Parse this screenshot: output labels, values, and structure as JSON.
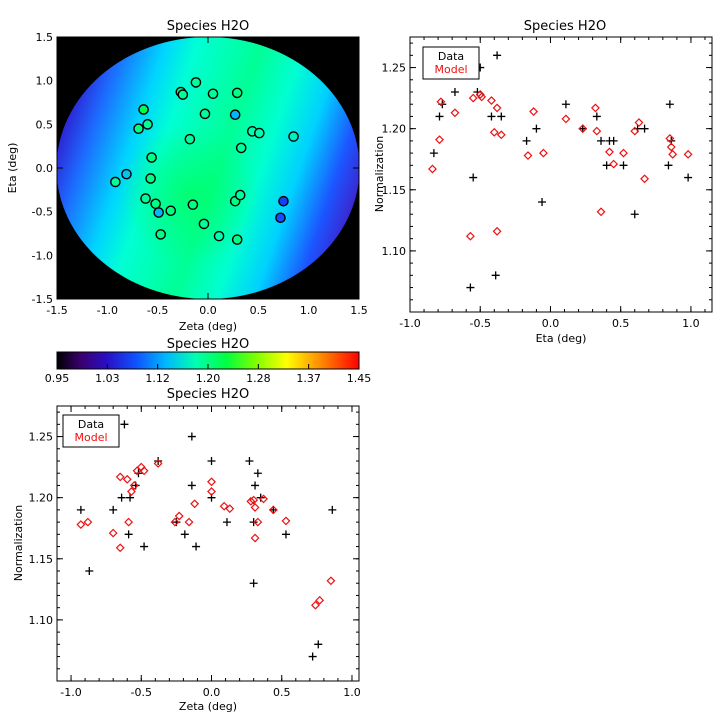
{
  "chart_data": [
    {
      "id": "map",
      "type": "heatmap",
      "title": "Species H2O",
      "xlabel": "Zeta (deg)",
      "ylabel": "Eta (deg)",
      "xlim": [
        -1.5,
        1.5
      ],
      "ylim": [
        -1.5,
        1.5
      ],
      "xticks": [
        "-1.5",
        "-1.0",
        "-0.5",
        "0.0",
        "0.5",
        "1.0",
        "1.5"
      ],
      "yticks": [
        "-1.5",
        "-1.0",
        "-0.5",
        "0.0",
        "0.5",
        "1.0",
        "1.5"
      ],
      "field_radius_deg": 1.5,
      "points": [
        {
          "zeta": -0.12,
          "eta": 0.98,
          "value": 1.19
        },
        {
          "zeta": -0.27,
          "eta": 0.87,
          "value": 1.2
        },
        {
          "zeta": -0.25,
          "eta": 0.84,
          "value": 1.19
        },
        {
          "zeta": 0.05,
          "eta": 0.85,
          "value": 1.19
        },
        {
          "zeta": 0.29,
          "eta": 0.86,
          "value": 1.2
        },
        {
          "zeta": -0.64,
          "eta": 0.67,
          "value": 1.22
        },
        {
          "zeta": -0.69,
          "eta": 0.45,
          "value": 1.2
        },
        {
          "zeta": -0.6,
          "eta": 0.5,
          "value": 1.19
        },
        {
          "zeta": -0.03,
          "eta": 0.62,
          "value": 1.19
        },
        {
          "zeta": 0.27,
          "eta": 0.61,
          "value": 1.13
        },
        {
          "zeta": -0.18,
          "eta": 0.33,
          "value": 1.19
        },
        {
          "zeta": 0.44,
          "eta": 0.42,
          "value": 1.18
        },
        {
          "zeta": 0.51,
          "eta": 0.4,
          "value": 1.18
        },
        {
          "zeta": 0.85,
          "eta": 0.36,
          "value": 1.17
        },
        {
          "zeta": 0.33,
          "eta": 0.23,
          "value": 1.19
        },
        {
          "zeta": -0.56,
          "eta": 0.12,
          "value": 1.2
        },
        {
          "zeta": -0.81,
          "eta": -0.07,
          "value": 1.14
        },
        {
          "zeta": -0.92,
          "eta": -0.16,
          "value": 1.19
        },
        {
          "zeta": -0.57,
          "eta": -0.12,
          "value": 1.2
        },
        {
          "zeta": -0.62,
          "eta": -0.35,
          "value": 1.19
        },
        {
          "zeta": -0.52,
          "eta": -0.41,
          "value": 1.2
        },
        {
          "zeta": -0.49,
          "eta": -0.51,
          "value": 1.13
        },
        {
          "zeta": -0.37,
          "eta": -0.49,
          "value": 1.2
        },
        {
          "zeta": -0.15,
          "eta": -0.42,
          "value": 1.2
        },
        {
          "zeta": 0.27,
          "eta": -0.38,
          "value": 1.2
        },
        {
          "zeta": 0.32,
          "eta": -0.31,
          "value": 1.19
        },
        {
          "zeta": 0.75,
          "eta": -0.38,
          "value": 1.07
        },
        {
          "zeta": 0.72,
          "eta": -0.57,
          "value": 1.08
        },
        {
          "zeta": -0.47,
          "eta": -0.76,
          "value": 1.2
        },
        {
          "zeta": -0.04,
          "eta": -0.64,
          "value": 1.19
        },
        {
          "zeta": 0.11,
          "eta": -0.78,
          "value": 1.18
        },
        {
          "zeta": 0.29,
          "eta": -0.82,
          "value": 1.2
        }
      ]
    },
    {
      "id": "colorbar",
      "type": "heatmap",
      "title": "Species H2O",
      "range": [
        0.95,
        1.45
      ],
      "tick_labels": [
        "0.95",
        "1.03",
        "1.12",
        "1.20",
        "1.28",
        "1.37",
        "1.45"
      ]
    },
    {
      "id": "eta_plot",
      "type": "scatter",
      "title": "Species H2O",
      "xlabel": "Eta (deg)",
      "ylabel": "Normalization",
      "xlim": [
        -1.0,
        1.15
      ],
      "ylim": [
        1.05,
        1.275
      ],
      "xticks": [
        -1.0,
        -0.5,
        0.0,
        0.5,
        1.0
      ],
      "xtick_labels": [
        "-1.0",
        "-0.5",
        "0.0",
        "0.5",
        "1.0"
      ],
      "yticks": [
        1.1,
        1.15,
        1.2,
        1.25
      ],
      "ytick_labels": [
        "1.10",
        "1.15",
        "1.20",
        "1.25"
      ],
      "legend": [
        "Data",
        "Model"
      ],
      "series": [
        {
          "name": "Data",
          "color": "#000000",
          "marker": "plus",
          "points": [
            [
              -0.83,
              1.18
            ],
            [
              -0.79,
              1.21
            ],
            [
              -0.77,
              1.22
            ],
            [
              -0.68,
              1.23
            ],
            [
              -0.57,
              1.07
            ],
            [
              -0.55,
              1.16
            ],
            [
              -0.52,
              1.23
            ],
            [
              -0.5,
              1.25
            ],
            [
              -0.42,
              1.21
            ],
            [
              -0.39,
              1.08
            ],
            [
              -0.38,
              1.26
            ],
            [
              -0.35,
              1.21
            ],
            [
              -0.17,
              1.19
            ],
            [
              -0.1,
              1.2
            ],
            [
              -0.06,
              1.14
            ],
            [
              0.11,
              1.22
            ],
            [
              0.23,
              1.2
            ],
            [
              0.33,
              1.21
            ],
            [
              0.36,
              1.19
            ],
            [
              0.4,
              1.17
            ],
            [
              0.42,
              1.19
            ],
            [
              0.45,
              1.19
            ],
            [
              0.52,
              1.17
            ],
            [
              0.6,
              1.13
            ],
            [
              0.62,
              1.2
            ],
            [
              0.67,
              1.2
            ],
            [
              0.84,
              1.17
            ],
            [
              0.85,
              1.22
            ],
            [
              0.86,
              1.19
            ],
            [
              0.98,
              1.16
            ]
          ]
        },
        {
          "name": "Model",
          "color": "#ee1111",
          "marker": "diamond",
          "points": [
            [
              -0.84,
              1.167
            ],
            [
              -0.79,
              1.191
            ],
            [
              -0.78,
              1.222
            ],
            [
              -0.68,
              1.213
            ],
            [
              -0.57,
              1.112
            ],
            [
              -0.55,
              1.225
            ],
            [
              -0.5,
              1.228
            ],
            [
              -0.49,
              1.226
            ],
            [
              -0.42,
              1.223
            ],
            [
              -0.4,
              1.197
            ],
            [
              -0.38,
              1.116
            ],
            [
              -0.38,
              1.217
            ],
            [
              -0.35,
              1.195
            ],
            [
              -0.16,
              1.178
            ],
            [
              -0.12,
              1.214
            ],
            [
              -0.05,
              1.18
            ],
            [
              0.11,
              1.208
            ],
            [
              0.23,
              1.2
            ],
            [
              0.32,
              1.217
            ],
            [
              0.36,
              1.132
            ],
            [
              0.33,
              1.198
            ],
            [
              0.42,
              1.181
            ],
            [
              0.45,
              1.171
            ],
            [
              0.52,
              1.18
            ],
            [
              0.6,
              1.198
            ],
            [
              0.63,
              1.205
            ],
            [
              0.67,
              1.159
            ],
            [
              0.85,
              1.192
            ],
            [
              0.86,
              1.185
            ],
            [
              0.87,
              1.179
            ],
            [
              0.98,
              1.179
            ]
          ]
        }
      ]
    },
    {
      "id": "zeta_plot",
      "type": "scatter",
      "title": "Species H2O",
      "xlabel": "Zeta (deg)",
      "ylabel": "Normalization",
      "xlim": [
        -1.1,
        1.05
      ],
      "ylim": [
        1.05,
        1.275
      ],
      "xticks": [
        -1.0,
        -0.5,
        0.0,
        0.5,
        1.0
      ],
      "xtick_labels": [
        "-1.0",
        "-0.5",
        "0.0",
        "0.5",
        "1.0"
      ],
      "yticks": [
        1.1,
        1.15,
        1.2,
        1.25
      ],
      "ytick_labels": [
        "1.10",
        "1.15",
        "1.20",
        "1.25"
      ],
      "legend": [
        "Data",
        "Model"
      ],
      "series": [
        {
          "name": "Data",
          "color": "#000000",
          "marker": "plus",
          "points": [
            [
              -0.93,
              1.19
            ],
            [
              -0.87,
              1.14
            ],
            [
              -0.7,
              1.19
            ],
            [
              -0.64,
              1.2
            ],
            [
              -0.62,
              1.26
            ],
            [
              -0.59,
              1.17
            ],
            [
              -0.58,
              1.2
            ],
            [
              -0.54,
              1.21
            ],
            [
              -0.52,
              1.22
            ],
            [
              -0.48,
              1.16
            ],
            [
              -0.38,
              1.23
            ],
            [
              -0.25,
              1.18
            ],
            [
              -0.19,
              1.17
            ],
            [
              -0.14,
              1.21
            ],
            [
              -0.14,
              1.25
            ],
            [
              -0.11,
              1.16
            ],
            [
              0.0,
              1.23
            ],
            [
              0.0,
              1.2
            ],
            [
              0.11,
              1.18
            ],
            [
              0.27,
              1.23
            ],
            [
              0.3,
              1.13
            ],
            [
              0.3,
              1.18
            ],
            [
              0.31,
              1.21
            ],
            [
              0.33,
              1.22
            ],
            [
              0.35,
              1.2
            ],
            [
              0.44,
              1.19
            ],
            [
              0.53,
              1.17
            ],
            [
              0.72,
              1.07
            ],
            [
              0.76,
              1.08
            ],
            [
              0.86,
              1.19
            ]
          ]
        },
        {
          "name": "Model",
          "color": "#ee1111",
          "marker": "diamond",
          "points": [
            [
              -0.93,
              1.178
            ],
            [
              -0.88,
              1.18
            ],
            [
              -0.7,
              1.171
            ],
            [
              -0.65,
              1.159
            ],
            [
              -0.65,
              1.217
            ],
            [
              -0.6,
              1.215
            ],
            [
              -0.59,
              1.18
            ],
            [
              -0.57,
              1.205
            ],
            [
              -0.55,
              1.21
            ],
            [
              -0.53,
              1.222
            ],
            [
              -0.5,
              1.225
            ],
            [
              -0.48,
              1.222
            ],
            [
              -0.38,
              1.228
            ],
            [
              -0.26,
              1.18
            ],
            [
              -0.23,
              1.185
            ],
            [
              -0.16,
              1.18
            ],
            [
              -0.12,
              1.195
            ],
            [
              0.0,
              1.213
            ],
            [
              0.0,
              1.205
            ],
            [
              0.09,
              1.193
            ],
            [
              0.13,
              1.191
            ],
            [
              0.28,
              1.197
            ],
            [
              0.3,
              1.198
            ],
            [
              0.31,
              1.167
            ],
            [
              0.31,
              1.192
            ],
            [
              0.33,
              1.18
            ],
            [
              0.37,
              1.199
            ],
            [
              0.44,
              1.19
            ],
            [
              0.53,
              1.181
            ],
            [
              0.74,
              1.112
            ],
            [
              0.77,
              1.116
            ],
            [
              0.85,
              1.132
            ]
          ]
        }
      ]
    }
  ]
}
